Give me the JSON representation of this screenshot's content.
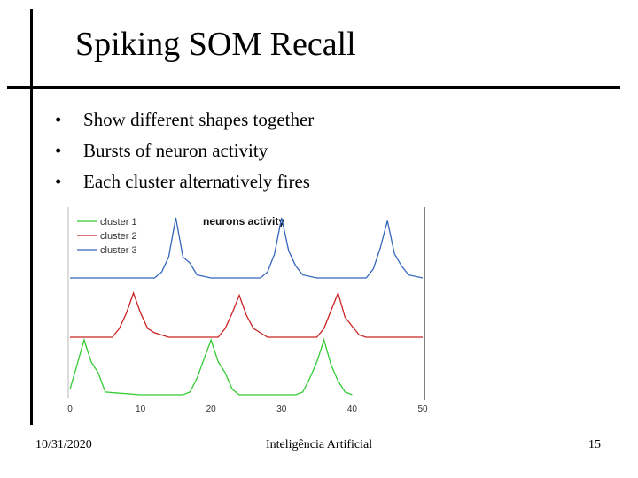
{
  "slide": {
    "title": "Spiking SOM Recall",
    "bullets": [
      {
        "marker": "•",
        "text": "Show different shapes together"
      },
      {
        "marker": "•",
        "text": "Bursts of neuron activity"
      },
      {
        "marker": "•",
        "text": "Each cluster alternatively fires"
      }
    ],
    "footer": {
      "date": "10/31/2020",
      "center": "Inteligência Artificial",
      "page": "15"
    }
  },
  "chart_data": {
    "type": "line",
    "title": "neurons activity",
    "xlabel": "",
    "ylabel": "",
    "xlim": [
      0,
      50
    ],
    "x_ticks": [
      "0",
      "10",
      "20",
      "30",
      "40",
      "50"
    ],
    "grid": false,
    "legend_position": "top-left",
    "series": [
      {
        "name": "cluster 1",
        "color": "#33cc33",
        "x": [
          0,
          1,
          2,
          3,
          4,
          5,
          10,
          11,
          12,
          13,
          14,
          15,
          16,
          17,
          18,
          19,
          20,
          21,
          22,
          23,
          24,
          25,
          26,
          27,
          28,
          29,
          30,
          31,
          32,
          33,
          34,
          35,
          36,
          37,
          38,
          39,
          40
        ],
        "y": [
          0.1,
          0.55,
          1.0,
          0.6,
          0.4,
          0.05,
          0,
          0,
          0,
          0,
          0,
          0,
          0,
          0.05,
          0.3,
          0.65,
          1.0,
          0.6,
          0.4,
          0.1,
          0,
          0,
          0,
          0,
          0,
          0,
          0,
          0,
          0,
          0.05,
          0.3,
          0.6,
          1.0,
          0.55,
          0.25,
          0.05,
          0
        ]
      },
      {
        "name": "cluster 2",
        "color": "#cc2222",
        "x": [
          0,
          5,
          6,
          7,
          8,
          9,
          10,
          11,
          12,
          13,
          14,
          15,
          20,
          21,
          22,
          23,
          24,
          25,
          26,
          27,
          28,
          29,
          30,
          31,
          35,
          36,
          37,
          38,
          39,
          40,
          41,
          42,
          43,
          44,
          45,
          50
        ],
        "y": [
          0,
          0,
          0,
          0.2,
          0.55,
          1.0,
          0.55,
          0.2,
          0.1,
          0.05,
          0,
          0,
          0,
          0,
          0.2,
          0.55,
          0.95,
          0.5,
          0.2,
          0.1,
          0,
          0,
          0,
          0,
          0,
          0.2,
          0.6,
          1.0,
          0.45,
          0.25,
          0.05,
          0,
          0,
          0,
          0,
          0
        ]
      },
      {
        "name": "cluster 3",
        "color": "#3366bb",
        "x": [
          0,
          5,
          10,
          12,
          13,
          14,
          15,
          16,
          17,
          18,
          20,
          25,
          27,
          28,
          29,
          30,
          31,
          32,
          33,
          35,
          40,
          42,
          43,
          44,
          45,
          46,
          47,
          48,
          50
        ],
        "y": [
          0,
          0,
          0,
          0,
          0.1,
          0.35,
          1.0,
          0.35,
          0.25,
          0.05,
          0,
          0,
          0,
          0.1,
          0.4,
          1.0,
          0.45,
          0.2,
          0.05,
          0,
          0,
          0,
          0.15,
          0.5,
          0.95,
          0.4,
          0.2,
          0.05,
          0
        ]
      }
    ]
  }
}
